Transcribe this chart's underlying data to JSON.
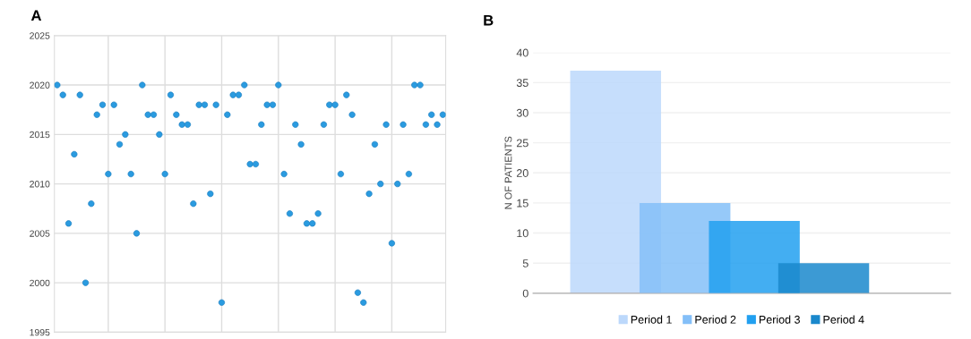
{
  "chart_data": [
    {
      "type": "scatter",
      "title": "A",
      "categories": [
        null,
        null,
        null,
        null,
        null,
        null,
        null,
        null,
        null,
        null,
        null,
        null,
        null,
        null,
        null,
        null,
        null,
        null,
        null,
        null,
        null,
        null,
        null,
        null,
        null,
        null,
        null,
        null,
        null,
        null,
        null,
        null,
        null,
        null,
        null,
        null,
        null,
        null,
        null,
        null,
        null,
        null,
        null,
        null,
        null,
        null,
        null,
        null,
        null,
        null,
        null,
        null,
        null,
        null,
        null,
        null,
        null,
        null,
        null,
        null,
        null,
        null,
        null,
        null,
        null,
        null,
        null,
        null,
        null
      ],
      "series": [
        {
          "color": "#2a9be0",
          "values": [
            2020,
            2019,
            2006,
            2013,
            2019,
            2000,
            2008,
            2017,
            2018,
            2011,
            2018,
            2014,
            2015,
            2011,
            2005,
            2020,
            2017,
            2017,
            2015,
            2011,
            2019,
            2017,
            2016,
            2016,
            2008,
            2018,
            2018,
            2009,
            2018,
            1998,
            2017,
            2019,
            2019,
            2020,
            2012,
            2012,
            2016,
            2018,
            2018,
            2020,
            2011,
            2007,
            2016,
            2014,
            2006,
            2006,
            2007,
            2016,
            2018,
            2018,
            2011,
            2019,
            2017,
            1999,
            1998,
            2009,
            2014,
            2010,
            2016,
            2004,
            2010,
            2016,
            2011,
            2020,
            2020,
            2016,
            2017,
            2016,
            2017
          ]
        }
      ],
      "ylim": [
        1995,
        2025
      ],
      "yticks": [
        1995,
        2000,
        2005,
        2010,
        2015,
        2020,
        2025
      ],
      "tick_labels": "y",
      "grid": true,
      "marker": "circle"
    },
    {
      "type": "bar",
      "title": "B",
      "ylabel": "N OF PATIENTS",
      "categories": [
        null
      ],
      "series": [
        {
          "name": "Period 1",
          "color": "#bcd8fb",
          "values": [
            37
          ]
        },
        {
          "name": "Period 2",
          "color": "#84bff8",
          "values": [
            15
          ]
        },
        {
          "name": "Period 3",
          "color": "#22a0f0",
          "values": [
            12
          ]
        },
        {
          "name": "Period 4",
          "color": "#1a88cc",
          "values": [
            5
          ]
        }
      ],
      "ylim": [
        0,
        40
      ],
      "yticks": [
        0,
        5,
        10,
        15,
        20,
        25,
        30,
        35,
        40
      ],
      "grid": "y",
      "legend": "bottom"
    }
  ]
}
